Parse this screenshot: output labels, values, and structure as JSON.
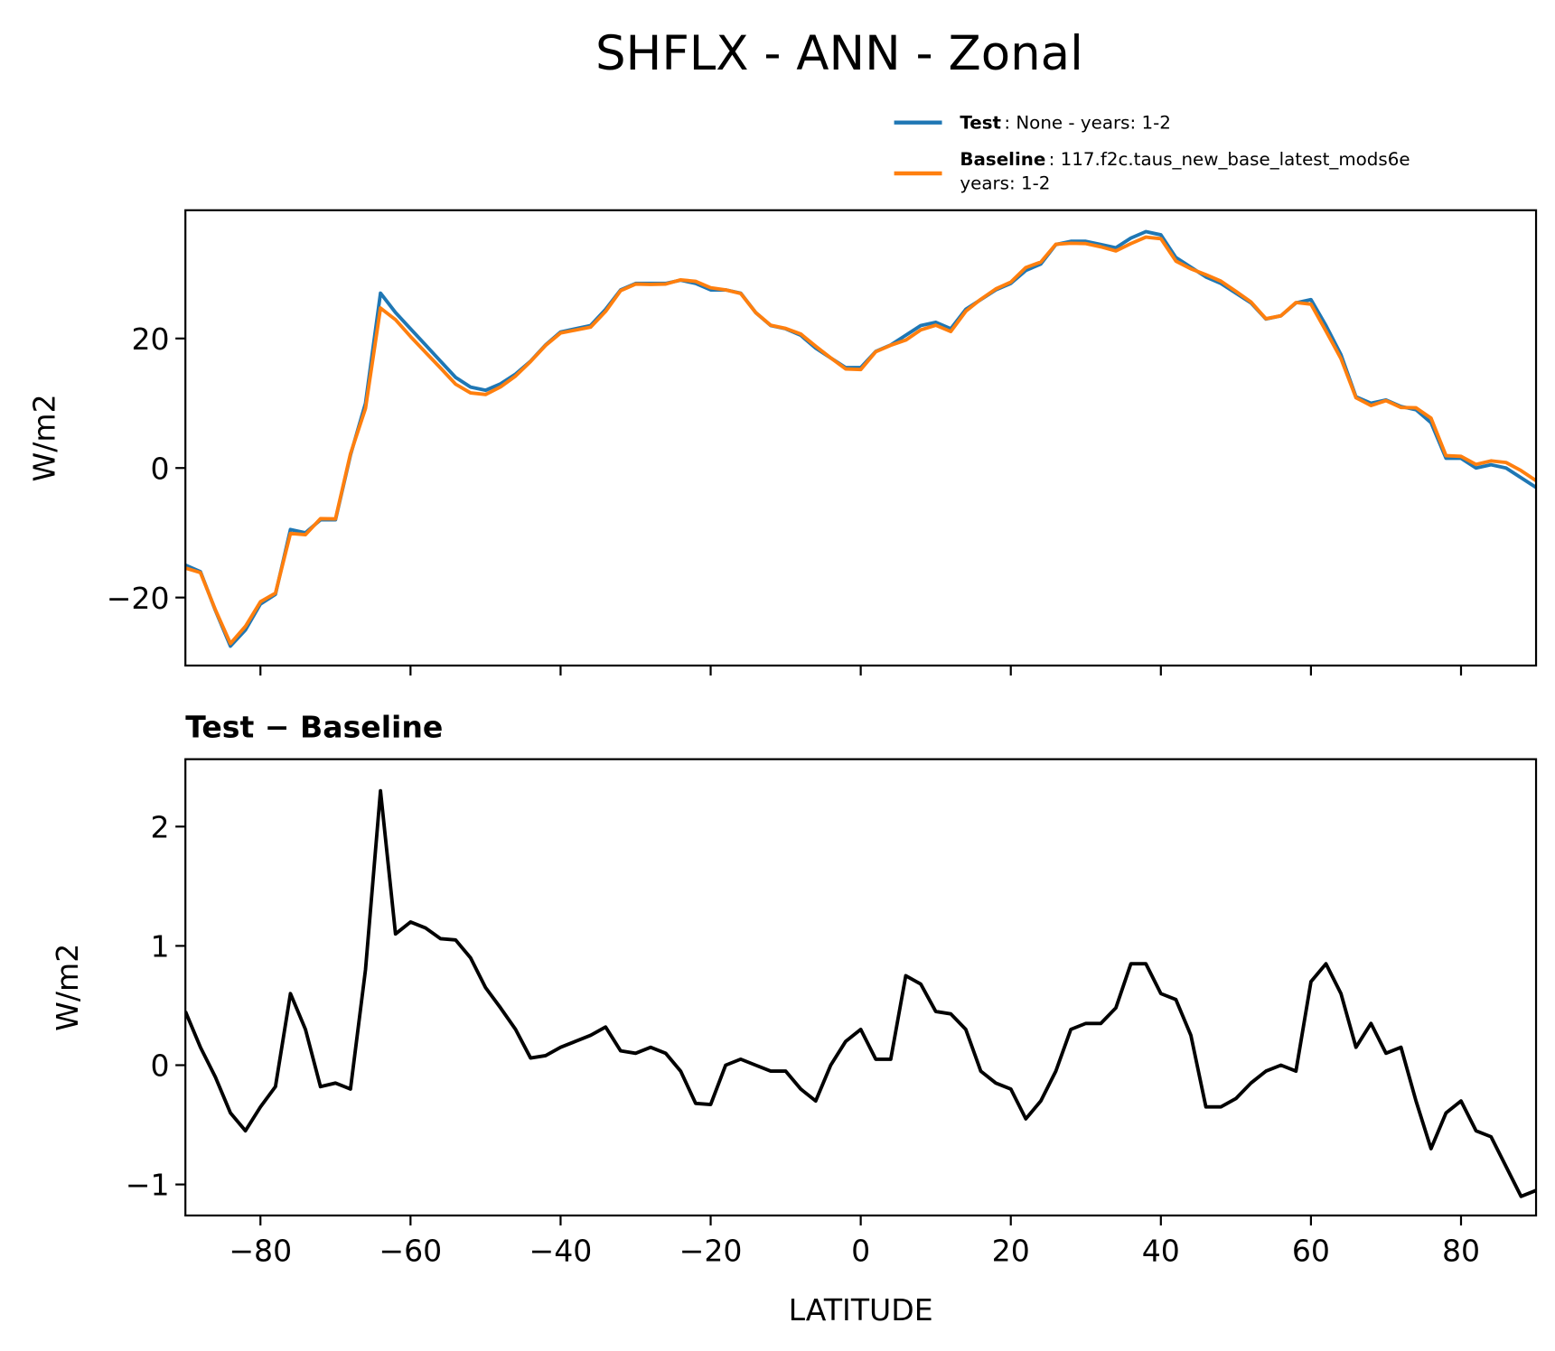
{
  "chart_data": [
    {
      "type": "line",
      "title": "SHFLX - ANN - Zonal",
      "ylabel": "W/m2",
      "x": [
        -90,
        -88,
        -86,
        -84,
        -82,
        -80,
        -78,
        -76,
        -74,
        -72,
        -70,
        -68,
        -66,
        -64,
        -62,
        -60,
        -58,
        -56,
        -54,
        -52,
        -50,
        -48,
        -46,
        -44,
        -42,
        -40,
        -38,
        -36,
        -34,
        -32,
        -30,
        -28,
        -26,
        -24,
        -22,
        -20,
        -18,
        -16,
        -14,
        -12,
        -10,
        -8,
        -6,
        -4,
        -2,
        0,
        2,
        4,
        6,
        8,
        10,
        12,
        14,
        16,
        18,
        20,
        22,
        24,
        26,
        28,
        30,
        32,
        34,
        36,
        38,
        40,
        42,
        44,
        46,
        48,
        50,
        52,
        54,
        56,
        58,
        60,
        62,
        64,
        66,
        68,
        70,
        72,
        74,
        76,
        78,
        80,
        82,
        84,
        86,
        88,
        90
      ],
      "series": [
        {
          "name": "Test",
          "description": [
            ": None - years: 1-2"
          ],
          "color": "#1f77b4",
          "values": [
            -15,
            -16,
            -22,
            -27.5,
            -25,
            -21,
            -19.5,
            -9.5,
            -10,
            -8,
            -8,
            2,
            10,
            27,
            24,
            21.5,
            19,
            16.5,
            14,
            12.5,
            12,
            13,
            14.5,
            16.5,
            19,
            21,
            21.5,
            22,
            24.5,
            27.5,
            28.5,
            28.5,
            28.5,
            29,
            28.5,
            27.5,
            27.5,
            27,
            24,
            22,
            21.5,
            20.5,
            18.5,
            17,
            15.5,
            15.5,
            18,
            19,
            20.5,
            22,
            22.5,
            21.5,
            24.5,
            26,
            27.5,
            28.5,
            30.5,
            31.5,
            34.5,
            35,
            35,
            34.5,
            34,
            35.5,
            36.5,
            36,
            32.5,
            31,
            29.5,
            28.5,
            27,
            25.5,
            23,
            23.5,
            25.5,
            26,
            22,
            17.5,
            11,
            10,
            10.5,
            9.5,
            9,
            7,
            1.5,
            1.5,
            0,
            0.5,
            0,
            -1.5,
            -3
          ]
        },
        {
          "name": "Baseline",
          "description": [
            ": 117.f2c.taus_new_base_latest_mods6e",
            "years: 1-2"
          ],
          "color": "#ff7f0e",
          "values": [
            -15.45,
            -16.15,
            -21.9,
            -27.1,
            -24.45,
            -20.65,
            -19.32,
            -10.1,
            -10.3,
            -7.82,
            -7.85,
            2.2,
            9.2,
            24.7,
            22.9,
            20.3,
            17.85,
            15.44,
            12.95,
            11.6,
            11.35,
            12.52,
            14.2,
            16.44,
            18.92,
            20.85,
            21.3,
            21.75,
            24.18,
            27.38,
            28.4,
            28.35,
            28.4,
            29.05,
            28.82,
            27.83,
            27.5,
            26.95,
            24,
            22.05,
            21.55,
            20.7,
            18.8,
            17,
            15.3,
            15.2,
            17.95,
            18.95,
            19.75,
            21.32,
            22.05,
            21.07,
            24.2,
            26.05,
            27.65,
            28.7,
            30.95,
            31.8,
            34.55,
            34.7,
            34.65,
            34.15,
            33.52,
            34.65,
            35.65,
            35.4,
            31.95,
            30.75,
            29.85,
            28.85,
            27.28,
            25.65,
            23.05,
            23.5,
            25.55,
            25.3,
            21.15,
            16.9,
            10.85,
            9.65,
            10.4,
            9.35,
            9.3,
            7.7,
            1.9,
            1.8,
            0.55,
            1.1,
            0.85,
            -0.4,
            -1.95
          ]
        }
      ],
      "xlim": [
        -90,
        90
      ],
      "ylim": [
        -30.5,
        39.8
      ],
      "xticks": [
        {
          "value": -80,
          "label": "−80"
        },
        {
          "value": -60,
          "label": "−60"
        },
        {
          "value": -40,
          "label": "−40"
        },
        {
          "value": -20,
          "label": "−20"
        },
        0,
        20,
        40,
        60,
        80
      ],
      "xtick_labels": false,
      "yticks": [
        {
          "value": -20,
          "label": "−20"
        },
        0,
        20
      ],
      "legend": "upper right",
      "grid": false
    },
    {
      "type": "line",
      "title": "Test − Baseline",
      "ylabel": "W/m2",
      "xlabel": "LATITUDE",
      "x": [
        -90,
        -88,
        -86,
        -84,
        -82,
        -80,
        -78,
        -76,
        -74,
        -72,
        -70,
        -68,
        -66,
        -64,
        -62,
        -60,
        -58,
        -56,
        -54,
        -52,
        -50,
        -48,
        -46,
        -44,
        -42,
        -40,
        -38,
        -36,
        -34,
        -32,
        -30,
        -28,
        -26,
        -24,
        -22,
        -20,
        -18,
        -16,
        -14,
        -12,
        -10,
        -8,
        -6,
        -4,
        -2,
        0,
        2,
        4,
        6,
        8,
        10,
        12,
        14,
        16,
        18,
        20,
        22,
        24,
        26,
        28,
        30,
        32,
        34,
        36,
        38,
        40,
        42,
        44,
        46,
        48,
        50,
        52,
        54,
        56,
        58,
        60,
        62,
        64,
        66,
        68,
        70,
        72,
        74,
        76,
        78,
        80,
        82,
        84,
        86,
        88,
        90
      ],
      "color": "#000000",
      "values": [
        0.45,
        0.15,
        -0.1,
        -0.4,
        -0.55,
        -0.35,
        -0.18,
        0.6,
        0.3,
        -0.18,
        -0.15,
        -0.2,
        0.8,
        2.3,
        1.1,
        1.2,
        1.15,
        1.06,
        1.05,
        0.9,
        0.65,
        0.48,
        0.3,
        0.06,
        0.08,
        0.15,
        0.2,
        0.25,
        0.32,
        0.12,
        0.1,
        0.15,
        0.1,
        -0.05,
        -0.32,
        -0.33,
        0,
        0.05,
        0,
        -0.05,
        -0.05,
        -0.2,
        -0.3,
        0,
        0.2,
        0.3,
        0.05,
        0.05,
        0.75,
        0.68,
        0.45,
        0.43,
        0.3,
        -0.05,
        -0.15,
        -0.2,
        -0.45,
        -0.3,
        -0.05,
        0.3,
        0.35,
        0.35,
        0.48,
        0.85,
        0.85,
        0.6,
        0.55,
        0.25,
        -0.35,
        -0.35,
        -0.28,
        -0.15,
        -0.05,
        0,
        -0.05,
        0.7,
        0.85,
        0.6,
        0.15,
        0.35,
        0.1,
        0.15,
        -0.3,
        -0.7,
        -0.4,
        -0.3,
        -0.55,
        -0.6,
        -0.85,
        -1.1,
        -1.05
      ],
      "xlim": [
        -90,
        90
      ],
      "ylim": [
        -1.26,
        2.565
      ],
      "xticks": [
        {
          "value": -80,
          "label": "−80"
        },
        {
          "value": -60,
          "label": "−60"
        },
        {
          "value": -40,
          "label": "−40"
        },
        {
          "value": -20,
          "label": "−20"
        },
        0,
        20,
        40,
        60,
        80
      ],
      "xtick_labels": true,
      "yticks": [
        {
          "value": -1,
          "label": "−1"
        },
        0,
        1,
        2
      ],
      "grid": false
    }
  ]
}
